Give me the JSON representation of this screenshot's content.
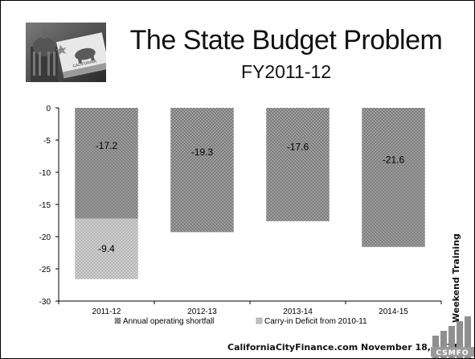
{
  "header": {
    "title": "The State Budget Problem",
    "subtitle": "FY2011-12"
  },
  "side_text": "Weekend Training",
  "footer": {
    "text": "CaliforniaCityFinance.com  November 18, 2011",
    "logo_text": "CSMFO"
  },
  "badge": {
    "flag_text": "CALIFORNIA"
  },
  "chart_data": {
    "type": "bar",
    "stacked": true,
    "categories": [
      "2011-12",
      "2012-13",
      "2013-14",
      "2014-15"
    ],
    "series": [
      {
        "name": "Annual operating shortfall",
        "values": [
          -17.2,
          -19.3,
          -17.6,
          -21.6
        ],
        "labels": [
          "-17.2",
          "-19.3",
          "-17.6",
          "-21.6"
        ]
      },
      {
        "name": "Carry-in Deficit from 2010-11",
        "values": [
          -9.4,
          null,
          null,
          null
        ],
        "labels": [
          "-9.4",
          "",
          "",
          ""
        ]
      }
    ],
    "ylim": [
      -30,
      0
    ],
    "yticks": [
      "0",
      "-5",
      "-10",
      "-15",
      "-20",
      "-25",
      "-30"
    ],
    "grid": false,
    "legend": "bottom"
  }
}
